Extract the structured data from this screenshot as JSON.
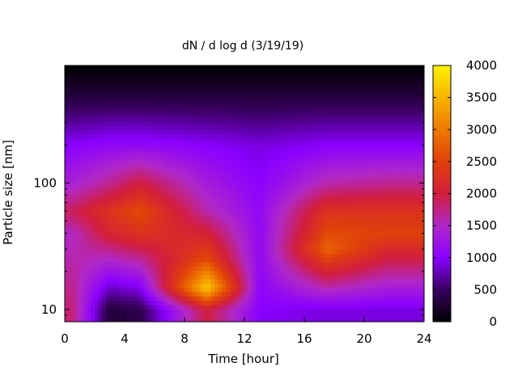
{
  "chart_data": {
    "type": "heatmap",
    "title": "dN / d log d (3/19/19)",
    "xlabel": "Time [hour]",
    "ylabel": "Particle size [nm]",
    "x_range": [
      0,
      24
    ],
    "x_ticks": [
      0,
      4,
      8,
      12,
      16,
      20,
      24
    ],
    "y_scale": "log",
    "y_range": [
      8,
      850
    ],
    "y_ticks": [
      10,
      100
    ],
    "colorbar": {
      "range": [
        0,
        4000
      ],
      "ticks": [
        0,
        500,
        1000,
        1500,
        2000,
        2500,
        3000,
        3500,
        4000
      ],
      "colormap": [
        "#000000",
        "#3a0060",
        "#8a00ff",
        "#b028c8",
        "#d21e3c",
        "#e0400a",
        "#ee7a00",
        "#f7b400",
        "#fff200"
      ]
    },
    "series": [
      {
        "time": 0.5,
        "values_by_size": {
          "10": 1800,
          "40": 1500,
          "60": 1900,
          "100": 1400,
          "200": 1000,
          "500": 300
        }
      },
      {
        "time": 3,
        "values_by_size": {
          "10": 300,
          "40": 2100,
          "60": 2300,
          "100": 1700,
          "200": 1100,
          "500": 300
        }
      },
      {
        "time": 5,
        "values_by_size": {
          "10": 400,
          "40": 2300,
          "60": 2600,
          "100": 2000,
          "200": 1100,
          "500": 300
        }
      },
      {
        "time": 9.5,
        "values_by_size": {
          "10": 2000,
          "15": 3700,
          "25": 2600,
          "60": 1600,
          "200": 1000,
          "500": 300
        }
      },
      {
        "time": 13,
        "values_by_size": {
          "10": 1000,
          "25": 1100,
          "60": 1100,
          "200": 900,
          "500": 300
        }
      },
      {
        "time": 17.5,
        "values_by_size": {
          "10": 900,
          "30": 2800,
          "60": 2300,
          "100": 1600,
          "200": 1000,
          "500": 300
        }
      },
      {
        "time": 21.5,
        "values_by_size": {
          "10": 900,
          "40": 2500,
          "60": 2300,
          "100": 1700,
          "200": 1000,
          "500": 300
        }
      }
    ],
    "grid": false
  }
}
